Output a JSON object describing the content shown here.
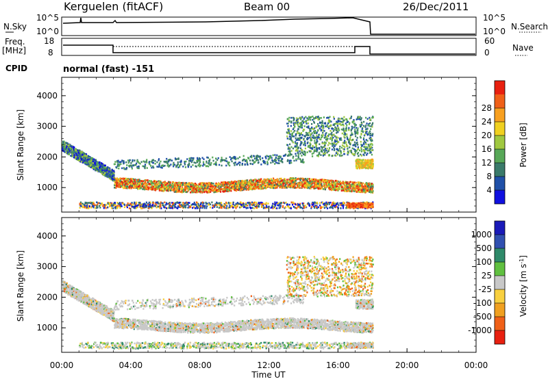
{
  "header": {
    "site": "Kerguelen (fitACF)",
    "beam": "Beam 00",
    "date": "26/Dec/2011"
  },
  "cpid": {
    "label": "CPID",
    "value": "normal (fast) -151"
  },
  "nsky_panel": {
    "left_label": "N.Sky",
    "right_label": "N.Search",
    "left_ticks": [
      "10^5",
      "10^0"
    ],
    "right_ticks": [
      "10^5",
      "10^0"
    ]
  },
  "freq_panel": {
    "left_label_1": "Freq.",
    "left_label_2": "[MHz]",
    "right_label": "Nave",
    "left_ticks": [
      18,
      8
    ],
    "right_ticks": [
      60,
      0
    ]
  },
  "chart_data": [
    {
      "type": "heatmap",
      "name": "power",
      "ylabel": "Slant Range [km]",
      "yticks": [
        1000,
        2000,
        3000,
        4000
      ],
      "ylim": [
        200,
        4600
      ],
      "colorbar": {
        "label": "Power [dB]",
        "ticks": [
          4,
          8,
          12,
          16,
          20,
          24,
          28
        ],
        "colors": [
          "#1010e0",
          "#2050a8",
          "#3a7a6a",
          "#58a858",
          "#a0c840",
          "#f0d020",
          "#f8a020",
          "#f06018",
          "#e82010"
        ]
      }
    },
    {
      "type": "heatmap",
      "name": "velocity",
      "ylabel": "Slant Range [km]",
      "yticks": [
        1000,
        2000,
        3000,
        4000
      ],
      "ylim": [
        200,
        4600
      ],
      "colorbar": {
        "label": "Velocity [m s^-1]",
        "ticks": [
          1000,
          500,
          100,
          25,
          -25,
          -100,
          -500,
          -1000
        ],
        "colors": [
          "#1a1ab8",
          "#3050b0",
          "#2f8a6a",
          "#60c040",
          "#c8c8c8",
          "#f8d040",
          "#f0a020",
          "#f06018",
          "#e82010"
        ]
      }
    }
  ],
  "x_axis": {
    "label": "Time UT",
    "ticks": [
      "00:00",
      "04:00",
      "08:00",
      "12:00",
      "16:00",
      "20:00",
      "00:00"
    ]
  }
}
